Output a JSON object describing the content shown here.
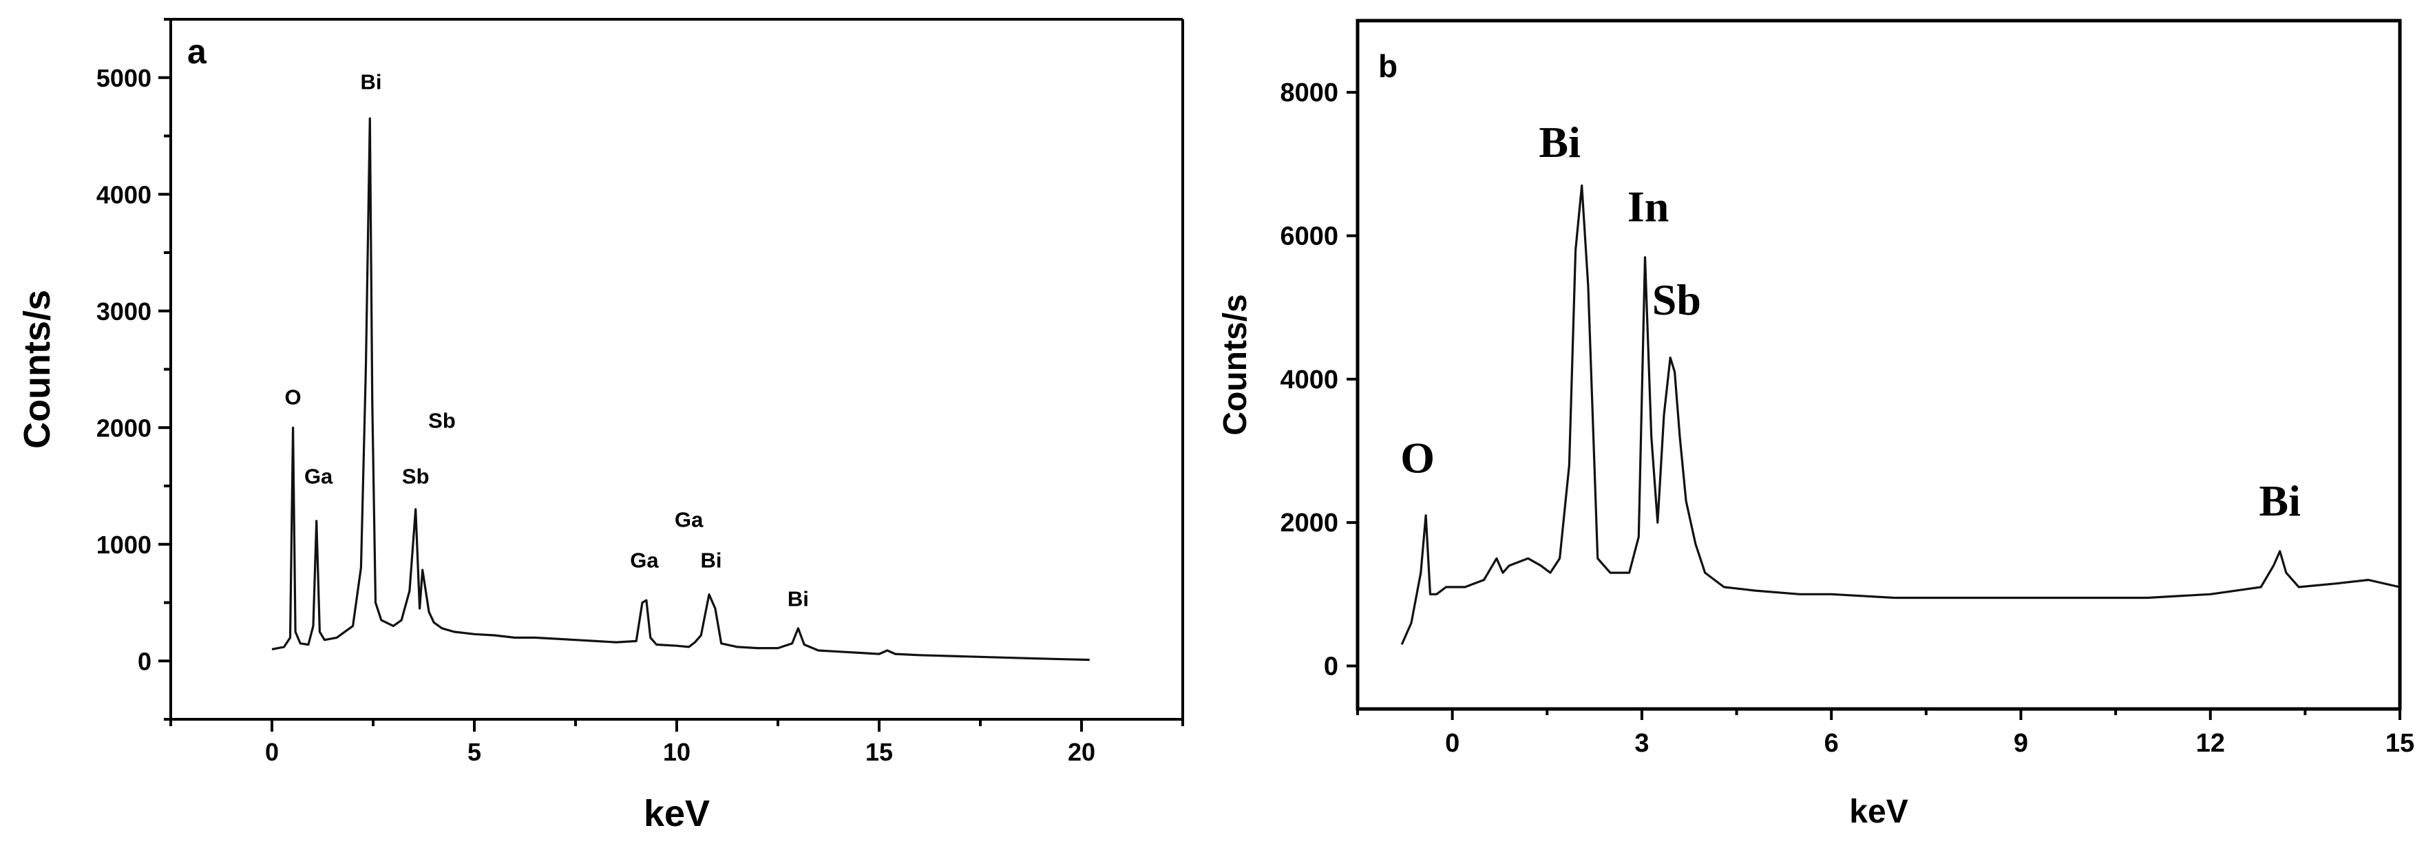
{
  "chart_data": [
    {
      "type": "line",
      "panel_label": "a",
      "xlabel": "keV",
      "ylabel": "Counts/s",
      "xlim": [
        -2.5,
        22.5
      ],
      "ylim": [
        -500,
        5500
      ],
      "x_ticks": [
        0,
        5,
        10,
        15,
        20
      ],
      "y_ticks": [
        0,
        1000,
        2000,
        3000,
        4000,
        5000
      ],
      "series": [
        {
          "x": [
            0.0,
            0.3,
            0.45,
            0.52,
            0.58,
            0.7,
            0.9,
            1.02,
            1.1,
            1.18,
            1.3,
            1.6,
            2.0,
            2.2,
            2.32,
            2.42,
            2.48,
            2.56,
            2.7,
            3.0,
            3.2,
            3.4,
            3.55,
            3.65,
            3.72,
            3.8,
            3.88,
            4.0,
            4.2,
            4.5,
            5.0,
            5.5,
            6.0,
            6.5,
            7.0,
            7.5,
            8.0,
            8.5,
            9.0,
            9.15,
            9.25,
            9.35,
            9.5,
            10.0,
            10.3,
            10.45,
            10.6,
            10.8,
            10.95,
            11.1,
            11.5,
            12.0,
            12.5,
            12.85,
            13.0,
            13.15,
            13.5,
            14.0,
            14.5,
            15.0,
            15.2,
            15.4,
            16.0,
            17.0,
            18.0,
            19.0,
            20.2
          ],
          "y": [
            100,
            120,
            200,
            2000,
            250,
            150,
            140,
            300,
            1200,
            250,
            180,
            200,
            300,
            800,
            2500,
            4650,
            2200,
            500,
            350,
            300,
            350,
            600,
            1300,
            450,
            780,
            600,
            420,
            330,
            280,
            250,
            230,
            220,
            200,
            200,
            190,
            180,
            170,
            160,
            170,
            500,
            520,
            200,
            140,
            130,
            120,
            160,
            220,
            570,
            450,
            150,
            120,
            110,
            110,
            150,
            280,
            140,
            90,
            80,
            70,
            60,
            90,
            60,
            50,
            40,
            30,
            20,
            10
          ]
        }
      ],
      "annotations": [
        {
          "text": "O",
          "x": 0.52,
          "y": 2200
        },
        {
          "text": "Ga",
          "x": 1.15,
          "y": 1520
        },
        {
          "text": "Bi",
          "x": 2.45,
          "y": 4900
        },
        {
          "text": "Sb",
          "x": 4.2,
          "y": 2000
        },
        {
          "text": "Sb",
          "x": 3.55,
          "y": 1520
        },
        {
          "text": "Ga",
          "x": 10.3,
          "y": 1150
        },
        {
          "text": "Ga",
          "x": 9.2,
          "y": 800
        },
        {
          "text": "Bi",
          "x": 10.85,
          "y": 800
        },
        {
          "text": "Bi",
          "x": 13.0,
          "y": 470
        }
      ]
    },
    {
      "type": "line",
      "panel_label": "b",
      "xlabel": "keV",
      "ylabel": "Counts/s",
      "xlim": [
        -1.5,
        15
      ],
      "ylim": [
        -600,
        9000
      ],
      "x_ticks": [
        0,
        3,
        6,
        9,
        12,
        15
      ],
      "y_ticks": [
        0,
        2000,
        4000,
        6000,
        8000
      ],
      "series": [
        {
          "x": [
            -0.8,
            -0.65,
            -0.5,
            -0.42,
            -0.35,
            -0.25,
            -0.1,
            0.2,
            0.5,
            0.7,
            0.8,
            0.9,
            1.2,
            1.4,
            1.55,
            1.7,
            1.85,
            1.95,
            2.05,
            2.15,
            2.3,
            2.5,
            2.8,
            2.95,
            3.05,
            3.15,
            3.25,
            3.35,
            3.45,
            3.52,
            3.6,
            3.7,
            3.85,
            4.0,
            4.3,
            4.8,
            5.5,
            6.0,
            7.0,
            8.0,
            9.0,
            10.0,
            11.0,
            12.0,
            12.8,
            13.0,
            13.1,
            13.2,
            13.4,
            14.0,
            14.5,
            15.0
          ],
          "y": [
            300,
            600,
            1300,
            2100,
            1000,
            1000,
            1100,
            1100,
            1200,
            1500,
            1300,
            1400,
            1500,
            1400,
            1300,
            1500,
            2800,
            5800,
            6700,
            5300,
            1500,
            1300,
            1300,
            1800,
            5700,
            3200,
            2000,
            3500,
            4300,
            4100,
            3200,
            2300,
            1700,
            1300,
            1100,
            1050,
            1000,
            1000,
            950,
            950,
            950,
            950,
            950,
            1000,
            1100,
            1400,
            1600,
            1300,
            1100,
            1150,
            1200,
            1100
          ]
        }
      ],
      "annotations": [
        {
          "text": "O",
          "x": -0.55,
          "y": 2700
        },
        {
          "text": "Bi",
          "x": 1.7,
          "y": 7100
        },
        {
          "text": "In",
          "x": 3.1,
          "y": 6200
        },
        {
          "text": "Sb",
          "x": 3.55,
          "y": 4900
        },
        {
          "text": "Bi",
          "x": 13.1,
          "y": 2100
        }
      ]
    }
  ]
}
